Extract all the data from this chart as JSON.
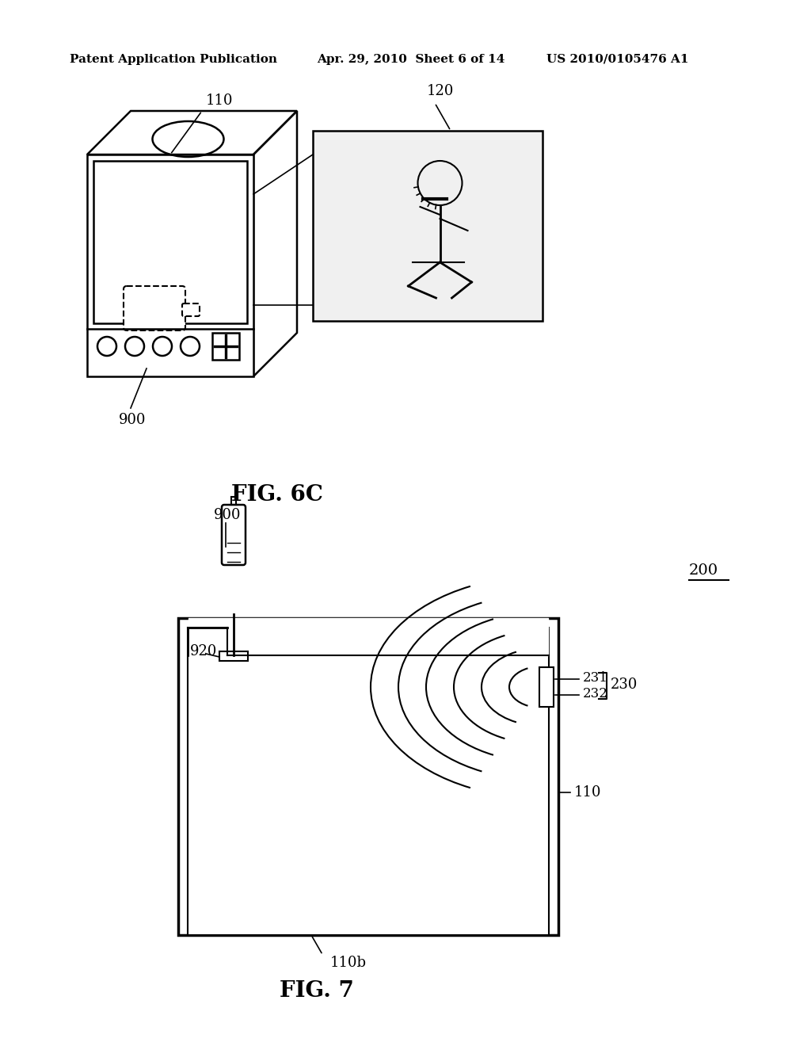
{
  "background_color": "#ffffff",
  "header_left": "Patent Application Publication",
  "header_mid": "Apr. 29, 2010  Sheet 6 of 14",
  "header_right": "US 2010/0105476 A1",
  "fig6c_label": "FIG. 6C",
  "fig7_label": "FIG. 7",
  "label_900_fig6": "900",
  "label_110_fig6": "110",
  "label_120_fig6": "120",
  "label_200_fig7": "200",
  "label_900_fig7": "900",
  "label_920_fig7": "920",
  "label_110_fig7": "110",
  "label_110b_fig7": "110b",
  "label_230_fig7": "230",
  "label_231_fig7": "231",
  "label_232_fig7": "232"
}
